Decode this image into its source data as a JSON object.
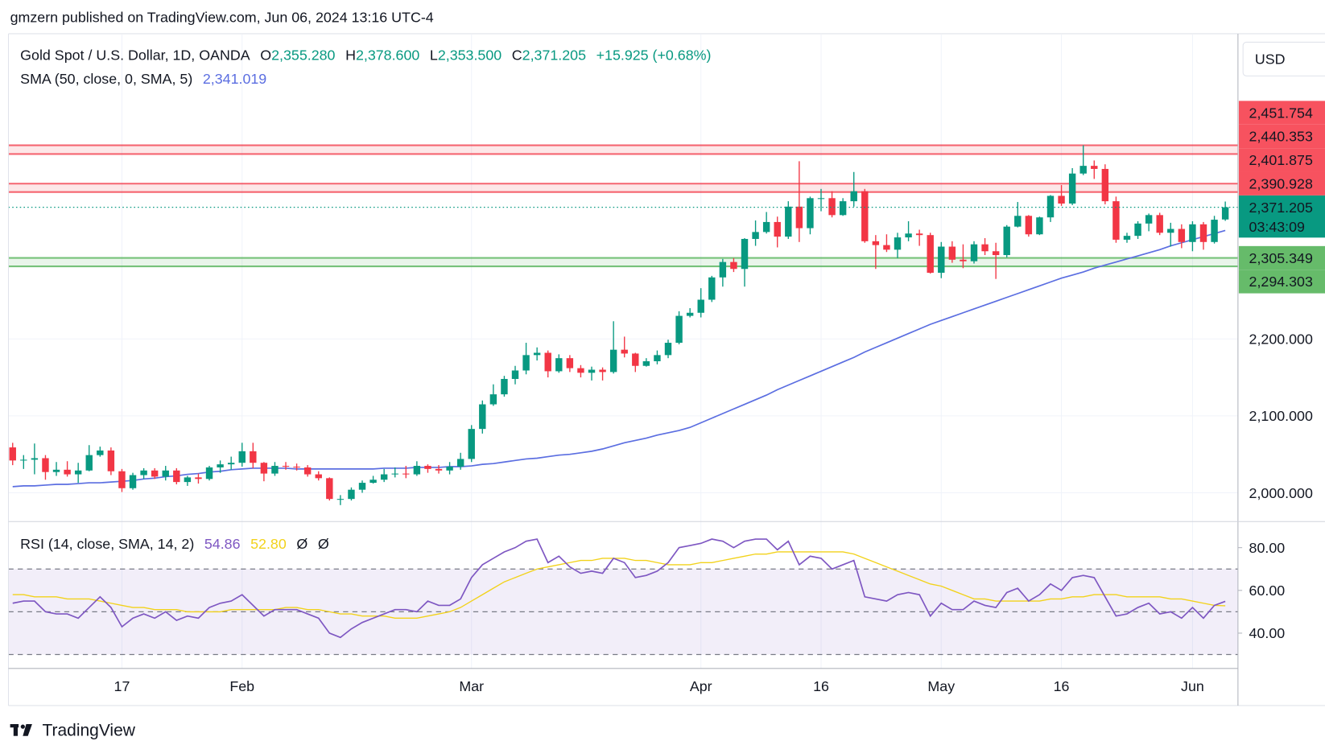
{
  "header": {
    "published": "gmzern published on TradingView.com, Jun 06, 2024 13:16 UTC-4"
  },
  "footer": {
    "logo": "TradingView"
  },
  "chart_data": [
    {
      "type": "candlestick",
      "title": "Gold Spot / U.S. Dollar, 1D, OANDA",
      "ohlc_legend": [
        {
          "key": "O",
          "value": "2,355.280"
        },
        {
          "key": "H",
          "value": "2,378.600"
        },
        {
          "key": "L",
          "value": "2,353.500"
        },
        {
          "key": "C",
          "value": "2,371.205"
        }
      ],
      "change": "+15.925 (+0.68%)",
      "currency": "USD",
      "categories": [
        null,
        null,
        null,
        null,
        null,
        null,
        null,
        null,
        null,
        null,
        "17",
        null,
        null,
        null,
        null,
        null,
        null,
        null,
        null,
        null,
        null,
        "Feb",
        null,
        null,
        null,
        null,
        null,
        null,
        null,
        null,
        null,
        null,
        null,
        null,
        null,
        null,
        null,
        null,
        null,
        null,
        null,
        null,
        "Mar",
        null,
        null,
        null,
        null,
        null,
        null,
        null,
        null,
        null,
        null,
        null,
        null,
        null,
        null,
        null,
        null,
        null,
        null,
        null,
        null,
        "Apr",
        null,
        null,
        null,
        null,
        null,
        null,
        null,
        null,
        null,
        null,
        "16",
        null,
        null,
        null,
        null,
        null,
        null,
        null,
        null,
        null,
        null,
        "May",
        null,
        null,
        null,
        null,
        null,
        null,
        null,
        null,
        null,
        null,
        "16",
        null,
        null,
        null,
        null,
        null,
        null,
        null,
        null,
        null,
        null,
        null,
        "Jun",
        null,
        null,
        null
      ],
      "open": [
        2059,
        2042,
        2043,
        2045,
        2027,
        2030,
        2024,
        2029,
        2049,
        2055,
        2028,
        2006,
        2023,
        2029,
        2021,
        2029,
        2014,
        2020,
        2018,
        2033,
        2037,
        2039,
        2054,
        2039,
        2025,
        2035,
        2034,
        2033,
        2024,
        2019,
        1992,
        1992,
        2004,
        2013,
        2017,
        2024,
        2025,
        2024,
        2035,
        2031,
        2029,
        2034,
        2044,
        2083,
        2115,
        2128,
        2148,
        2159,
        2179,
        2182,
        2158,
        2175,
        2162,
        2156,
        2160,
        2157,
        2186,
        2181,
        2165,
        2171,
        2179,
        2195,
        2230,
        2234,
        2251,
        2280,
        2300,
        2291,
        2330,
        2339,
        2352,
        2333,
        2372,
        2344,
        2383,
        2383,
        2361,
        2379,
        2392,
        2327,
        2322,
        2316,
        2332,
        2337,
        2335,
        2286,
        2320,
        2303,
        2301,
        2323,
        2314,
        2309,
        2346,
        2360,
        2336,
        2358,
        2386,
        2376,
        2415,
        2425,
        2421,
        2379,
        2329,
        2334,
        2350,
        2361,
        2338,
        2343,
        2326,
        2349,
        2326,
        2355.28
      ],
      "high": [
        2065,
        2049,
        2064,
        2049,
        2040,
        2041,
        2039,
        2062,
        2060,
        2059,
        2031,
        2026,
        2032,
        2032,
        2035,
        2032,
        2022,
        2025,
        2035,
        2042,
        2047,
        2065,
        2065,
        2040,
        2040,
        2040,
        2038,
        2036,
        2028,
        2020,
        1997,
        2007,
        2016,
        2022,
        2031,
        2033,
        2035,
        2041,
        2037,
        2036,
        2040,
        2052,
        2088,
        2120,
        2141,
        2152,
        2165,
        2195,
        2189,
        2185,
        2180,
        2179,
        2166,
        2164,
        2163,
        2223,
        2203,
        2182,
        2175,
        2185,
        2199,
        2236,
        2240,
        2266,
        2282,
        2304,
        2305,
        2331,
        2354,
        2365,
        2359,
        2379,
        2431,
        2385,
        2395,
        2392,
        2383,
        2417,
        2395,
        2335,
        2336,
        2338,
        2353,
        2342,
        2338,
        2326,
        2327,
        2323,
        2327,
        2331,
        2325,
        2348,
        2378,
        2361,
        2359,
        2387,
        2400,
        2422,
        2451.754,
        2432,
        2427,
        2385,
        2338,
        2353,
        2363,
        2364,
        2351,
        2349,
        2353,
        2352,
        2360,
        2378.6
      ],
      "low": [
        2036,
        2031,
        2024,
        2017,
        2022,
        2021,
        2013,
        2028,
        2047,
        2023,
        2001,
        2004,
        2018,
        2018,
        2016,
        2011,
        2009,
        2012,
        2016,
        2026,
        2030,
        2034,
        2032,
        2015,
        2022,
        2030,
        2029,
        2021,
        2016,
        1990,
        1984,
        1990,
        2000,
        2012,
        2014,
        2020,
        2019,
        2022,
        2026,
        2025,
        2024,
        2030,
        2040,
        2077,
        2113,
        2125,
        2141,
        2154,
        2172,
        2150,
        2156,
        2157,
        2150,
        2146,
        2146,
        2155,
        2176,
        2157,
        2164,
        2167,
        2175,
        2193,
        2228,
        2228,
        2248,
        2268,
        2287,
        2268,
        2321,
        2337,
        2319,
        2330,
        2326,
        2336,
        2366,
        2358,
        2360,
        2372,
        2325,
        2291,
        2313,
        2305,
        2327,
        2321,
        2285,
        2279,
        2299,
        2292,
        2298,
        2309,
        2278,
        2306,
        2345,
        2333,
        2335,
        2352,
        2373,
        2374,
        2413,
        2408,
        2375,
        2325,
        2325,
        2330,
        2340,
        2335,
        2320,
        2318,
        2314,
        2316,
        2324,
        2353.5
      ],
      "close": [
        2042,
        2043,
        2045,
        2027,
        2030,
        2024,
        2029,
        2049,
        2055,
        2028,
        2006,
        2023,
        2029,
        2021,
        2029,
        2014,
        2020,
        2018,
        2033,
        2037,
        2039,
        2054,
        2039,
        2025,
        2035,
        2034,
        2033,
        2024,
        2019,
        1992,
        1992,
        2004,
        2013,
        2017,
        2024,
        2025,
        2024,
        2035,
        2031,
        2029,
        2034,
        2044,
        2083,
        2115,
        2128,
        2148,
        2159,
        2179,
        2182,
        2158,
        2175,
        2162,
        2156,
        2160,
        2157,
        2186,
        2181,
        2165,
        2171,
        2179,
        2195,
        2230,
        2234,
        2251,
        2280,
        2300,
        2291,
        2330,
        2339,
        2352,
        2333,
        2372,
        2344,
        2383,
        2383,
        2361,
        2379,
        2392,
        2327,
        2322,
        2316,
        2332,
        2337,
        2335,
        2286,
        2320,
        2303,
        2301,
        2323,
        2314,
        2309,
        2346,
        2360,
        2336,
        2358,
        2386,
        2376,
        2415,
        2425,
        2421,
        2379,
        2329,
        2334,
        2350,
        2361,
        2338,
        2343,
        2326,
        2349,
        2326,
        2355,
        2371.205
      ],
      "up_color": "#089981",
      "down_color": "#f23645",
      "overlays": [
        {
          "name": "SMA (50, close, 0, SMA, 5)",
          "color": "#5b6ee1",
          "last_label": "2,341.019",
          "values": [
            2008,
            2009,
            2009,
            2010,
            2011,
            2011,
            2012,
            2013,
            2013,
            2014,
            2015,
            2016,
            2018,
            2019,
            2021,
            2022,
            2024,
            2025,
            2027,
            2028,
            2030,
            2031,
            2032,
            2032,
            2032,
            2032,
            2031,
            2031,
            2031,
            2031,
            2031,
            2031,
            2031,
            2031,
            2032,
            2032,
            2032,
            2033,
            2033,
            2033,
            2034,
            2034,
            2035,
            2037,
            2038,
            2040,
            2042,
            2044,
            2045,
            2047,
            2049,
            2050,
            2052,
            2054,
            2057,
            2061,
            2065,
            2068,
            2071,
            2075,
            2078,
            2081,
            2085,
            2091,
            2097,
            2103,
            2109,
            2115,
            2121,
            2127,
            2134,
            2140,
            2146,
            2152,
            2158,
            2164,
            2170,
            2176,
            2183,
            2189,
            2195,
            2201,
            2207,
            2213,
            2219,
            2224,
            2229,
            2234,
            2239,
            2244,
            2249,
            2254,
            2259,
            2264,
            2269,
            2274,
            2279,
            2283,
            2287,
            2292,
            2296,
            2300,
            2304,
            2308,
            2312,
            2316,
            2321,
            2325,
            2329,
            2333,
            2337,
            2341.019
          ]
        }
      ],
      "last_price": {
        "value": 2371.205,
        "label": "2,371.205",
        "countdown": "03:43:09"
      },
      "resistance": {
        "color": "#f23645",
        "label_color": "#f7525f",
        "levels": [
          {
            "value": 2451.754,
            "label": "2,451.754"
          },
          {
            "value": 2440.353,
            "label": "2,440.353"
          },
          {
            "value": 2401.875,
            "label": "2,401.875"
          },
          {
            "value": 2390.928,
            "label": "2,390.928"
          }
        ]
      },
      "support": {
        "color": "#4caf50",
        "label_color": "#66bb6a",
        "levels": [
          {
            "value": 2305.349,
            "label": "2,305.349"
          },
          {
            "value": 2294.303,
            "label": "2,294.303"
          }
        ]
      },
      "ylim": [
        1962.6,
        2595.6
      ],
      "yticks": [
        {
          "value": 2000,
          "label": "2,000.000"
        },
        {
          "value": 2100,
          "label": "2,100.000"
        },
        {
          "value": 2200,
          "label": "2,200.000"
        }
      ],
      "grid": true
    },
    {
      "type": "line",
      "title": "RSI (14, close, SMA, 14, 2)",
      "series": [
        {
          "color": "#7e57c2",
          "last_label": "54.86",
          "values": [
            54,
            55,
            55,
            50,
            49,
            49,
            47,
            52,
            57,
            52,
            43,
            47,
            49,
            47,
            50,
            46,
            48,
            47,
            52,
            54,
            55,
            58,
            53,
            48,
            51,
            51,
            51,
            49,
            47,
            40,
            38,
            42,
            45,
            47,
            49,
            51,
            51,
            50,
            55,
            53,
            53,
            56,
            66,
            72,
            75,
            78,
            80,
            83,
            84,
            73,
            76,
            71,
            68,
            69,
            68,
            75,
            73,
            66,
            67,
            69,
            73,
            80,
            81,
            82,
            84,
            83,
            80,
            83,
            84,
            84,
            79,
            83,
            72,
            76,
            75,
            70,
            72,
            74,
            57,
            56,
            55,
            58,
            59,
            58,
            48,
            54,
            51,
            51,
            55,
            53,
            52,
            59,
            61,
            55,
            58,
            63,
            60,
            66,
            67,
            66,
            57,
            48,
            49,
            52,
            54,
            49,
            50,
            47,
            52,
            47,
            53,
            54.86
          ]
        },
        {
          "color": "#f2d21b",
          "last_label": "52.80",
          "values": [
            58,
            58,
            57,
            57,
            57,
            56,
            56,
            56,
            55,
            54,
            53,
            52,
            52,
            51,
            51,
            51,
            50,
            50,
            50,
            50,
            51,
            51,
            51,
            51,
            51,
            52,
            52,
            51,
            51,
            50,
            49,
            49,
            48,
            48,
            48,
            47,
            47,
            47,
            48,
            49,
            50,
            52,
            55,
            58,
            61,
            64,
            66,
            68,
            70,
            71,
            72,
            73,
            74,
            74,
            75,
            75,
            75,
            74,
            74,
            73,
            72,
            72,
            72,
            73,
            73,
            74,
            75,
            76,
            77,
            77,
            78,
            78,
            78,
            78,
            78,
            78,
            78,
            77,
            75,
            73,
            71,
            69,
            67,
            65,
            63,
            62,
            60,
            58,
            56,
            56,
            55,
            55,
            55,
            55,
            55,
            56,
            56,
            57,
            57,
            58,
            58,
            58,
            57,
            57,
            57,
            57,
            56,
            56,
            55,
            54,
            53,
            52.8
          ]
        }
      ],
      "extra_labels": [
        "Ø",
        "Ø"
      ],
      "levels": [
        30,
        50,
        70
      ],
      "ylim": [
        23.5,
        91.8
      ],
      "yticks": [
        {
          "value": 40,
          "label": "40.00"
        },
        {
          "value": 60,
          "label": "60.00"
        },
        {
          "value": 80,
          "label": "80.00"
        }
      ]
    }
  ]
}
